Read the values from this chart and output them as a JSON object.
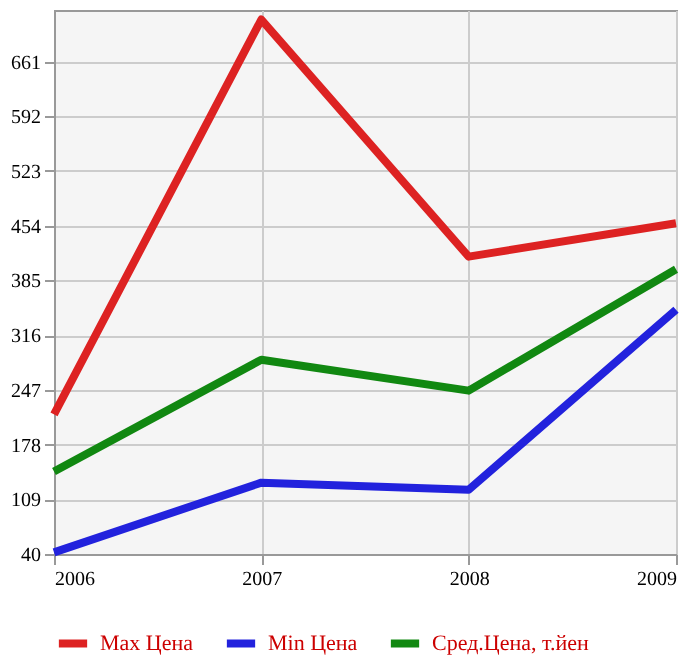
{
  "chart_data": {
    "type": "line",
    "x": [
      2006,
      2007,
      2008,
      2009
    ],
    "series": [
      {
        "name": "Max Цена",
        "color": "#dd2222",
        "values": [
          216,
          714,
          415,
          457
        ]
      },
      {
        "name": "Min Цена",
        "color": "#2222dd",
        "values": [
          42,
          130,
          121,
          348
        ]
      },
      {
        "name": "Сред.Цена, т.йен",
        "color": "#118811",
        "values": [
          144,
          285,
          246,
          399
        ]
      }
    ],
    "xlim": [
      2006,
      2009
    ],
    "xticks": [
      2006,
      2007,
      2008,
      2009
    ],
    "ylim": [
      40,
      726
    ],
    "yticks": [
      40,
      109,
      178,
      247,
      316,
      385,
      454,
      523,
      592,
      661
    ],
    "grid": true,
    "legend": "bottom",
    "marker": "none",
    "line_style": "solid"
  }
}
